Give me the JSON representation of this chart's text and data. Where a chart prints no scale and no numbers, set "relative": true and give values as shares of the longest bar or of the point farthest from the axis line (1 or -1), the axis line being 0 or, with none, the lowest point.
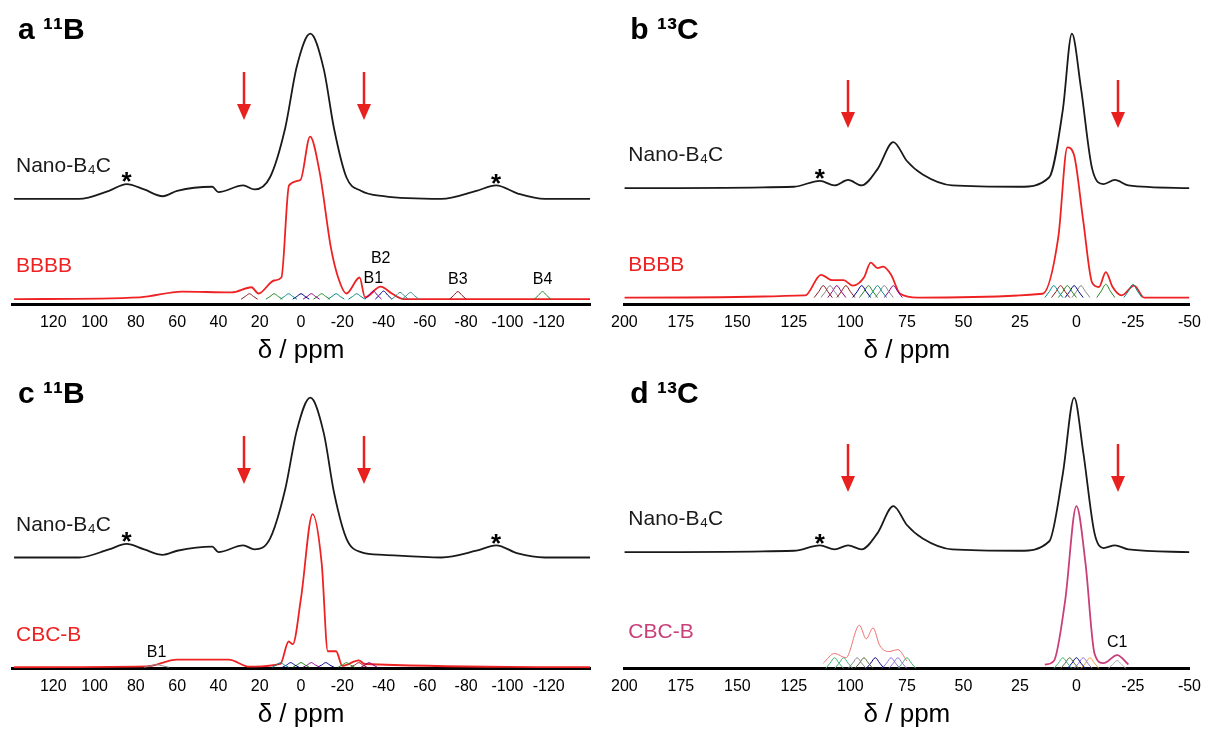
{
  "chart_data": [
    {
      "type": "line",
      "title": "a ¹¹B",
      "xlabel": "δ / ppm",
      "relative": true,
      "grid": false,
      "legend": false,
      "marker": "none",
      "xlim": [
        140,
        -140
      ],
      "xticks": [
        120,
        100,
        80,
        60,
        40,
        20,
        0,
        -20,
        -40,
        -60,
        -80,
        -100,
        -120
      ],
      "annotations": [
        {
          "text": "*",
          "x": 84.5,
          "y": 0.445
        },
        {
          "text": "*",
          "x": -94.5,
          "y": 0.44
        },
        {
          "text": "B1",
          "x": -35,
          "y": 0.05
        },
        {
          "text": "B2",
          "x": -38.6,
          "y": 0.066
        },
        {
          "text": "B3",
          "x": -76,
          "y": 0.048
        },
        {
          "text": "B4",
          "x": -117,
          "y": 0.048
        }
      ],
      "series": [
        {
          "name": "Nano-B₄C",
          "color": "#1a1a1a",
          "x": [
            139,
            107.6,
            93,
            84.5,
            76,
            67,
            60,
            43,
            40,
            28,
            22.5,
            15,
            7.7,
            2,
            -4.5,
            -11,
            -16,
            -22,
            -29,
            -40,
            -68,
            -85,
            -94.5,
            -105,
            -118,
            -140
          ],
          "values": [
            0.39,
            0.39,
            0.42,
            0.445,
            0.425,
            0.4,
            0.42,
            0.435,
            0.415,
            0.44,
            0.425,
            0.47,
            0.65,
            0.88,
            1.0,
            0.87,
            0.65,
            0.47,
            0.42,
            0.4,
            0.39,
            0.42,
            0.44,
            0.41,
            0.39,
            0.39
          ]
        },
        {
          "name": "BBBB",
          "color": "#ee2222",
          "x": [
            139,
            78,
            57.6,
            33.6,
            24,
            20.6,
            13,
            9.5,
            5.8,
            0.3,
            -4.4,
            -9,
            -14.5,
            -18,
            -22,
            -28.4,
            -31,
            -38.6,
            -44,
            -49.7,
            -140
          ],
          "values": [
            0.02,
            0.027,
            0.048,
            0.045,
            0.064,
            0.041,
            0.089,
            0.1,
            0.44,
            0.46,
            0.62,
            0.49,
            0.21,
            0.1,
            0.041,
            0.1,
            0.027,
            0.066,
            0.041,
            0.02,
            0.02
          ]
        },
        {
          "color": "#8b1a1a",
          "x": [
            29,
            27,
            25,
            23,
            21
          ],
          "values": [
            0.02,
            0.03,
            0.04,
            0.03,
            0.02
          ]
        },
        {
          "color": "#228b22",
          "x": [
            17,
            15,
            13,
            11,
            9
          ],
          "values": [
            0.02,
            0.03,
            0.04,
            0.03,
            0.02
          ]
        },
        {
          "color": "#008b8b",
          "x": [
            10,
            8,
            6,
            4,
            2
          ],
          "values": [
            0.02,
            0.03,
            0.04,
            0.03,
            0.02
          ]
        },
        {
          "color": "#00008b",
          "x": [
            4,
            2,
            0,
            -2,
            -4
          ],
          "values": [
            0.02,
            0.03,
            0.04,
            0.03,
            0.02
          ]
        },
        {
          "color": "#8b008b",
          "x": [
            -1,
            -3,
            -5,
            -7,
            -9
          ],
          "values": [
            0.02,
            0.03,
            0.04,
            0.03,
            0.02
          ]
        },
        {
          "color": "#228b22",
          "x": [
            -6,
            -8,
            -10,
            -12,
            -14
          ],
          "values": [
            0.02,
            0.03,
            0.04,
            0.03,
            0.02
          ]
        },
        {
          "color": "#008b8b",
          "x": [
            -13,
            -15,
            -17,
            -19,
            -21
          ],
          "values": [
            0.02,
            0.03,
            0.04,
            0.03,
            0.02
          ]
        },
        {
          "color": "#008b8b",
          "x": [
            -23,
            -25,
            -27,
            -29,
            -31
          ],
          "values": [
            0.02,
            0.03,
            0.04,
            0.03,
            0.02
          ]
        },
        {
          "color": "#8b008b",
          "x": [
            -31,
            -33,
            -35,
            -37,
            -39
          ],
          "values": [
            0.02,
            0.035,
            0.05,
            0.035,
            0.02
          ]
        },
        {
          "color": "#00008b",
          "x": [
            -36,
            -38,
            -40,
            -42,
            -44
          ],
          "values": [
            0.02,
            0.035,
            0.05,
            0.035,
            0.02
          ]
        },
        {
          "color": "#2e8b8b",
          "x": [
            -44,
            -46,
            -48,
            -50,
            -52
          ],
          "values": [
            0.02,
            0.033,
            0.045,
            0.033,
            0.02
          ]
        },
        {
          "color": "#2e8b8b",
          "x": [
            -49,
            -51,
            -53,
            -55,
            -57
          ],
          "values": [
            0.02,
            0.033,
            0.045,
            0.033,
            0.02
          ]
        },
        {
          "color": "#8b1a1a",
          "x": [
            -72,
            -74,
            -76,
            -78,
            -80
          ],
          "values": [
            0.02,
            0.034,
            0.048,
            0.034,
            0.02
          ]
        },
        {
          "color": "#228b22",
          "x": [
            -113,
            -115,
            -117,
            -119,
            -121
          ],
          "values": [
            0.02,
            0.034,
            0.048,
            0.034,
            0.02
          ]
        }
      ]
    },
    {
      "type": "line",
      "title": "b ¹³C",
      "xlabel": "δ / ppm",
      "relative": true,
      "grid": false,
      "legend": false,
      "marker": "none",
      "xlim": [
        200,
        -50
      ],
      "xticks": [
        200,
        175,
        150,
        125,
        100,
        75,
        50,
        25,
        0,
        -25,
        -50
      ],
      "annotations": [
        {
          "text": "*",
          "x": 113.5,
          "y": 0.457
        }
      ],
      "series": [
        {
          "name": "Nano-B₄C",
          "color": "#1a1a1a",
          "x": [
            200,
            125,
            113.5,
            107,
            101,
            95,
            88,
            81,
            75,
            68,
            55,
            25,
            12,
            6,
            2,
            -2,
            -7,
            -12,
            -17,
            -23,
            -50
          ],
          "values": [
            0.43,
            0.435,
            0.457,
            0.44,
            0.46,
            0.44,
            0.5,
            0.6,
            0.53,
            0.48,
            0.44,
            0.435,
            0.47,
            0.72,
            1.0,
            0.8,
            0.5,
            0.445,
            0.46,
            0.44,
            0.43
          ]
        },
        {
          "name": "BBBB",
          "color": "#ee2222",
          "x": [
            200,
            120,
            113,
            108,
            103,
            99,
            94,
            91,
            88,
            85.5,
            82,
            78,
            70,
            15,
            8,
            4,
            1,
            -3,
            -7,
            -10,
            -13,
            -16,
            -20,
            -25.5,
            -30,
            -50
          ],
          "values": [
            0.026,
            0.034,
            0.11,
            0.09,
            0.09,
            0.07,
            0.1,
            0.155,
            0.135,
            0.14,
            0.11,
            0.04,
            0.026,
            0.04,
            0.25,
            0.58,
            0.55,
            0.31,
            0.08,
            0.065,
            0.12,
            0.065,
            0.034,
            0.07,
            0.026,
            0.026
          ]
        },
        {
          "color": "#8b1a1a",
          "x": [
            116,
            114,
            112,
            110,
            108
          ],
          "values": [
            0.026,
            0.048,
            0.07,
            0.048,
            0.026
          ]
        },
        {
          "color": "#888888",
          "x": [
            113,
            111,
            109,
            107,
            105
          ],
          "values": [
            0.026,
            0.048,
            0.07,
            0.048,
            0.026
          ]
        },
        {
          "color": "#8b008b",
          "x": [
            110,
            108,
            106,
            104,
            102
          ],
          "values": [
            0.026,
            0.048,
            0.07,
            0.048,
            0.026
          ]
        },
        {
          "color": "#8b1a1a",
          "x": [
            106,
            104,
            102,
            100,
            98
          ],
          "values": [
            0.026,
            0.048,
            0.07,
            0.048,
            0.026
          ]
        },
        {
          "color": "#00008b",
          "x": [
            99,
            97,
            95,
            93,
            91
          ],
          "values": [
            0.026,
            0.048,
            0.07,
            0.048,
            0.026
          ]
        },
        {
          "color": "#228b22",
          "x": [
            96,
            94,
            92,
            90,
            88
          ],
          "values": [
            0.026,
            0.048,
            0.07,
            0.048,
            0.026
          ]
        },
        {
          "color": "#008b8b",
          "x": [
            92,
            90,
            88,
            86,
            84
          ],
          "values": [
            0.026,
            0.048,
            0.07,
            0.048,
            0.026
          ]
        },
        {
          "color": "#888888",
          "x": [
            89,
            87,
            85,
            83,
            81
          ],
          "values": [
            0.026,
            0.048,
            0.07,
            0.048,
            0.026
          ]
        },
        {
          "color": "#8b008b",
          "x": [
            85,
            83,
            81,
            79,
            77
          ],
          "values": [
            0.026,
            0.048,
            0.07,
            0.048,
            0.026
          ]
        },
        {
          "color": "#008b8b",
          "x": [
            14,
            12,
            10,
            8,
            6
          ],
          "values": [
            0.026,
            0.048,
            0.07,
            0.048,
            0.026
          ]
        },
        {
          "color": "#8b1a1a",
          "x": [
            11,
            9,
            7,
            5,
            3
          ],
          "values": [
            0.026,
            0.048,
            0.07,
            0.048,
            0.026
          ]
        },
        {
          "color": "#228b22",
          "x": [
            8,
            6,
            4,
            2,
            0
          ],
          "values": [
            0.026,
            0.048,
            0.07,
            0.048,
            0.026
          ]
        },
        {
          "color": "#00008b",
          "x": [
            5,
            3,
            1,
            -1,
            -3
          ],
          "values": [
            0.026,
            0.048,
            0.07,
            0.048,
            0.026
          ]
        },
        {
          "color": "#888888",
          "x": [
            2,
            0,
            -2,
            -4,
            -6
          ],
          "values": [
            0.026,
            0.048,
            0.07,
            0.048,
            0.026
          ]
        },
        {
          "color": "#228b22",
          "x": [
            -9,
            -11,
            -13,
            -15,
            -17
          ],
          "values": [
            0.026,
            0.05,
            0.075,
            0.05,
            0.026
          ]
        },
        {
          "color": "#008b8b",
          "x": [
            -21,
            -23,
            -25,
            -27,
            -29
          ],
          "values": [
            0.026,
            0.05,
            0.075,
            0.05,
            0.026
          ]
        }
      ]
    },
    {
      "type": "line",
      "title": "c ¹¹B",
      "xlabel": "δ / ppm",
      "relative": true,
      "grid": false,
      "legend": false,
      "marker": "none",
      "xlim": [
        140,
        -140
      ],
      "xticks": [
        120,
        100,
        80,
        60,
        40,
        20,
        0,
        -20,
        -40,
        -60,
        -80,
        -100,
        -120
      ],
      "annotations": [
        {
          "text": "*",
          "x": 84.5,
          "y": 0.46
        },
        {
          "text": "*",
          "x": -94.5,
          "y": 0.455
        },
        {
          "text": "B1",
          "x": 70,
          "y": 0.015
        }
      ],
      "series": [
        {
          "name": "Nano-B₄C",
          "color": "#1a1a1a",
          "x": [
            139,
            107.6,
            93,
            84.5,
            76,
            67,
            60,
            43,
            40,
            28,
            22.5,
            15,
            7.7,
            2,
            -4.5,
            -11,
            -16,
            -22,
            -29,
            -40,
            -68,
            -85,
            -94.5,
            -105,
            -118,
            -140
          ],
          "values": [
            0.41,
            0.41,
            0.44,
            0.46,
            0.44,
            0.42,
            0.435,
            0.45,
            0.43,
            0.455,
            0.44,
            0.48,
            0.66,
            0.88,
            1.0,
            0.87,
            0.65,
            0.48,
            0.43,
            0.42,
            0.41,
            0.435,
            0.455,
            0.425,
            0.41,
            0.41
          ]
        },
        {
          "name": "CBC-B",
          "color": "#ee2222",
          "x": [
            139,
            75,
            60,
            35,
            25,
            10,
            6,
            4,
            0,
            -5.6,
            -10,
            -13,
            -17,
            -20,
            -28,
            -31,
            -140
          ],
          "values": [
            0.005,
            0.008,
            0.033,
            0.033,
            0.007,
            0.017,
            0.1,
            0.09,
            0.26,
            0.57,
            0.39,
            0.064,
            0.064,
            0.01,
            0.03,
            0.017,
            0.005
          ]
        },
        {
          "color": "#888888",
          "x": [
            76,
            73,
            70,
            67,
            64
          ],
          "values": [
            0.005,
            0.01,
            0.015,
            0.01,
            0.005
          ]
        },
        {
          "color": "#008b8b",
          "x": [
            14,
            12,
            10,
            8,
            6
          ],
          "values": [
            0.005,
            0.013,
            0.022,
            0.013,
            0.005
          ]
        },
        {
          "color": "#00008b",
          "x": [
            9,
            7,
            5,
            3,
            1
          ],
          "values": [
            0.005,
            0.013,
            0.022,
            0.013,
            0.005
          ]
        },
        {
          "color": "#228b22",
          "x": [
            4,
            2,
            0,
            -2,
            -4
          ],
          "values": [
            0.005,
            0.013,
            0.022,
            0.013,
            0.005
          ]
        },
        {
          "color": "#8b008b",
          "x": [
            -1,
            -3,
            -5,
            -7,
            -9
          ],
          "values": [
            0.005,
            0.013,
            0.022,
            0.013,
            0.005
          ]
        },
        {
          "color": "#00008b",
          "x": [
            -8,
            -10,
            -12,
            -14,
            -16
          ],
          "values": [
            0.005,
            0.013,
            0.022,
            0.013,
            0.005
          ]
        },
        {
          "color": "#228b22",
          "x": [
            -18,
            -20,
            -22,
            -24,
            -26
          ],
          "values": [
            0.005,
            0.013,
            0.022,
            0.013,
            0.005
          ]
        },
        {
          "color": "#8b1a1a",
          "x": [
            -24,
            -26,
            -28,
            -30,
            -32
          ],
          "values": [
            0.005,
            0.013,
            0.022,
            0.013,
            0.005
          ]
        },
        {
          "color": "#8b008b",
          "x": [
            -29,
            -31,
            -33,
            -35,
            -37
          ],
          "values": [
            0.005,
            0.013,
            0.022,
            0.013,
            0.005
          ]
        }
      ]
    },
    {
      "type": "line",
      "title": "d ¹³C",
      "xlabel": "δ / ppm",
      "relative": true,
      "grid": false,
      "legend": false,
      "marker": "none",
      "xlim": [
        200,
        -50
      ],
      "xticks": [
        200,
        175,
        150,
        125,
        100,
        75,
        50,
        25,
        0,
        -25,
        -50
      ],
      "annotations": [
        {
          "text": "*",
          "x": 113.5,
          "y": 0.455
        },
        {
          "text": "C1",
          "x": -18,
          "y": 0.05
        }
      ],
      "series": [
        {
          "name": "Nano-B₄C",
          "color": "#1a1a1a",
          "x": [
            200,
            125,
            113.5,
            107,
            101,
            95,
            88,
            81,
            75,
            68,
            55,
            25,
            12,
            6,
            1,
            -3,
            -8,
            -12,
            -17,
            -23,
            -50
          ],
          "values": [
            0.43,
            0.435,
            0.455,
            0.44,
            0.455,
            0.44,
            0.5,
            0.6,
            0.53,
            0.48,
            0.44,
            0.435,
            0.47,
            0.72,
            1.0,
            0.8,
            0.5,
            0.445,
            0.455,
            0.44,
            0.43
          ]
        },
        {
          "color": "#f07070",
          "x": [
            112,
            107,
            102,
            96,
            93,
            90,
            87,
            83,
            79,
            75
          ],
          "values": [
            0.02,
            0.056,
            0.04,
            0.16,
            0.11,
            0.15,
            0.085,
            0.063,
            0.07,
            0.028
          ]
        },
        {
          "name": "CBC-B",
          "color": "#c8407a",
          "x": [
            14,
            10,
            5,
            0,
            -4,
            -8,
            -12,
            -18,
            -23
          ],
          "values": [
            0.015,
            0.028,
            0.25,
            0.6,
            0.39,
            0.056,
            0.02,
            0.05,
            0.015
          ]
        },
        {
          "color": "#3cb371",
          "x": [
            111,
            109,
            107,
            105,
            103
          ],
          "values": [
            0.0,
            0.02,
            0.04,
            0.02,
            0.0
          ]
        },
        {
          "color": "#3cb371",
          "x": [
            107,
            105,
            103,
            101,
            99
          ],
          "values": [
            0.0,
            0.02,
            0.04,
            0.02,
            0.0
          ]
        },
        {
          "color": "#888888",
          "x": [
            101,
            99,
            97,
            95,
            93
          ],
          "values": [
            0.0,
            0.02,
            0.04,
            0.02,
            0.0
          ]
        },
        {
          "color": "#556b2f",
          "x": [
            98,
            96,
            94,
            92,
            90
          ],
          "values": [
            0.0,
            0.02,
            0.04,
            0.02,
            0.0
          ]
        },
        {
          "color": "#00008b",
          "x": [
            93,
            91,
            89,
            87,
            85
          ],
          "values": [
            0.0,
            0.02,
            0.04,
            0.02,
            0.0
          ]
        },
        {
          "color": "#9370db",
          "x": [
            86,
            84,
            82,
            80,
            78
          ],
          "values": [
            0.0,
            0.02,
            0.04,
            0.02,
            0.0
          ]
        },
        {
          "color": "#9370db",
          "x": [
            83,
            81,
            79,
            77,
            75
          ],
          "values": [
            0.0,
            0.02,
            0.04,
            0.02,
            0.0
          ]
        },
        {
          "color": "#3cb371",
          "x": [
            79,
            77,
            75,
            73,
            71
          ],
          "values": [
            0.0,
            0.02,
            0.04,
            0.02,
            0.0
          ]
        },
        {
          "color": "#3cb371",
          "x": [
            10,
            8,
            6,
            4,
            2
          ],
          "values": [
            0.0,
            0.02,
            0.04,
            0.02,
            0.0
          ]
        },
        {
          "color": "#556b2f",
          "x": [
            7,
            5,
            3,
            1,
            -1
          ],
          "values": [
            0.0,
            0.02,
            0.04,
            0.02,
            0.0
          ]
        },
        {
          "color": "#00008b",
          "x": [
            4,
            2,
            0,
            -2,
            -4
          ],
          "values": [
            0.0,
            0.02,
            0.04,
            0.02,
            0.0
          ]
        },
        {
          "color": "#9370db",
          "x": [
            1,
            -1,
            -3,
            -5,
            -7
          ],
          "values": [
            0.0,
            0.02,
            0.04,
            0.02,
            0.0
          ]
        },
        {
          "color": "#f0a040",
          "x": [
            -2,
            -4,
            -6,
            -8,
            -10
          ],
          "values": [
            0.0,
            0.02,
            0.04,
            0.02,
            0.0
          ]
        },
        {
          "color": "#aaaaaa",
          "x": [
            -14,
            -16,
            -18,
            -20,
            -22
          ],
          "values": [
            0.0,
            0.015,
            0.03,
            0.015,
            0.0
          ]
        }
      ]
    }
  ]
}
